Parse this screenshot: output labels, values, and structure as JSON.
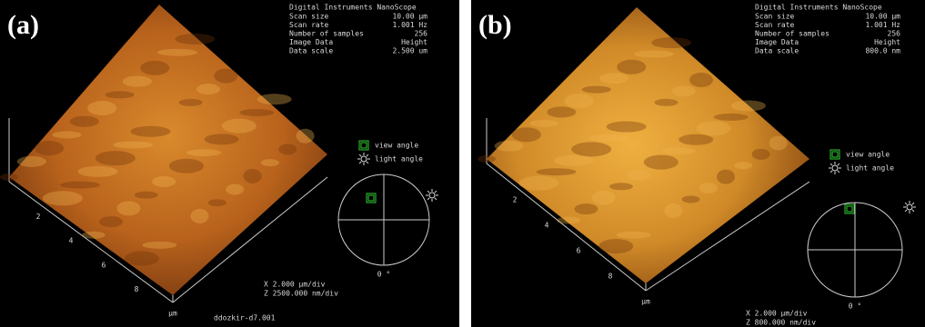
{
  "panels": [
    {
      "label": "(a)",
      "header": "Digital Instruments NanoScope",
      "info": [
        [
          "Scan size",
          "10.00 µm"
        ],
        [
          "Scan rate",
          "1.001 Hz"
        ],
        [
          "Number of samples",
          "256"
        ],
        [
          "Image Data",
          "Height"
        ],
        [
          "Data scale",
          "2.500 um"
        ]
      ],
      "view_angle": "view angle",
      "light_angle": "light angle",
      "angle": "0 °",
      "x_ticks": [
        "2",
        "4",
        "6",
        "8"
      ],
      "unit": "µm",
      "x_scale": "X 2.000 µm/div",
      "z_scale": "Z 2500.000 nm/div",
      "filename": "ddozkir-d7.001"
    },
    {
      "label": "(b)",
      "header": "Digital Instruments NanoScope",
      "info": [
        [
          "Scan size",
          "10.00 µm"
        ],
        [
          "Scan rate",
          "1.001 Hz"
        ],
        [
          "Number of samples",
          "256"
        ],
        [
          "Image Data",
          "Height"
        ],
        [
          "Data scale",
          "800.0 nm"
        ]
      ],
      "view_angle": "view angle",
      "light_angle": "light angle",
      "angle": "0 °",
      "x_ticks": [
        "2",
        "4",
        "6",
        "8"
      ],
      "unit": "µm",
      "x_scale": "X 2.000 µm/div",
      "z_scale": "Z 800.000 nm/div"
    }
  ]
}
